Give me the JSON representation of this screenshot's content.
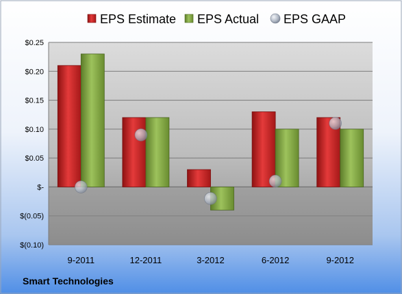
{
  "chart_data": {
    "type": "bar",
    "categories": [
      "9-2011",
      "12-2011",
      "3-2012",
      "6-2012",
      "9-2012"
    ],
    "series": [
      {
        "name": "EPS Estimate",
        "values": [
          0.21,
          0.12,
          0.03,
          0.13,
          0.12
        ],
        "color": "#d42a2a",
        "kind": "bar"
      },
      {
        "name": "EPS Actual",
        "values": [
          0.23,
          0.12,
          -0.04,
          0.1,
          0.1
        ],
        "color": "#8ab04a",
        "kind": "bar"
      },
      {
        "name": "EPS GAAP",
        "values": [
          0.0,
          0.09,
          -0.02,
          0.01,
          0.11
        ],
        "color": "#b0b8c4",
        "kind": "marker"
      }
    ],
    "yticks": [
      {
        "value": 0.25,
        "label": "$0.25"
      },
      {
        "value": 0.2,
        "label": "$0.20"
      },
      {
        "value": 0.15,
        "label": "$0.15"
      },
      {
        "value": 0.1,
        "label": "$0.10"
      },
      {
        "value": 0.05,
        "label": "$0.05"
      },
      {
        "value": 0.0,
        "label": "$-"
      },
      {
        "value": -0.05,
        "label": "$(0.05)"
      },
      {
        "value": -0.1,
        "label": "$(0.10)"
      }
    ],
    "ylim": [
      -0.1,
      0.25
    ],
    "legend_position": "top",
    "grid": true,
    "footer": "Smart Technologies"
  }
}
